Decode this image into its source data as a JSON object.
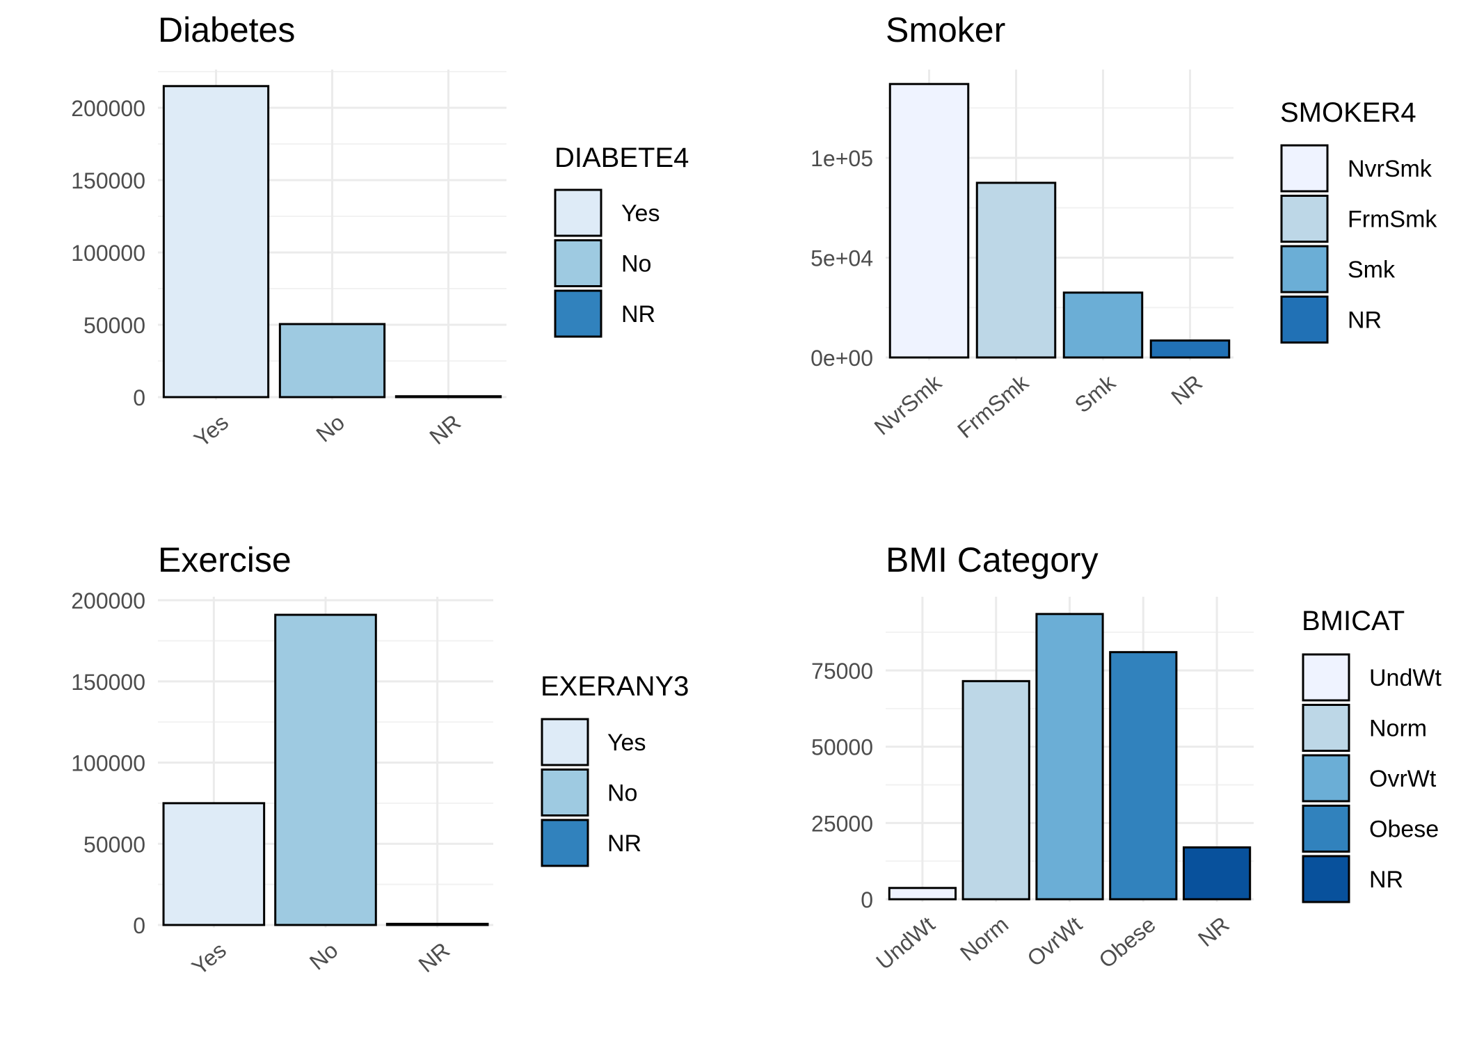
{
  "chart_data": [
    {
      "type": "bar",
      "title": "Diabetes",
      "categories": [
        "Yes",
        "No",
        "NR"
      ],
      "values": [
        215000,
        50500,
        600
      ],
      "ylim": [
        0,
        215000
      ],
      "yticks": [
        0,
        50000,
        100000,
        150000,
        200000
      ],
      "ytick_labels": [
        "0",
        "50000",
        "100000",
        "150000",
        "200000"
      ],
      "xlabel": "",
      "ylabel": "",
      "grid": true,
      "legend": {
        "title": "DIABETE4",
        "position": "right",
        "entries": [
          "Yes",
          "No",
          "NR"
        ],
        "colors": [
          "#deebf7",
          "#9ecae1",
          "#3182bd"
        ]
      }
    },
    {
      "type": "bar",
      "title": "Smoker",
      "categories": [
        "NvrSmk",
        "FrmSmk",
        "Smk",
        "NR"
      ],
      "values": [
        137000,
        87500,
        32500,
        8500
      ],
      "ylim": [
        0,
        137000
      ],
      "yticks": [
        0,
        50000,
        100000
      ],
      "ytick_labels": [
        "0e+00",
        "5e+04",
        "1e+05"
      ],
      "xlabel": "",
      "ylabel": "",
      "grid": true,
      "legend": {
        "title": "SMOKER4",
        "position": "right",
        "entries": [
          "NvrSmk",
          "FrmSmk",
          "Smk",
          "NR"
        ],
        "colors": [
          "#eff3ff",
          "#bdd7e7",
          "#6baed6",
          "#2171b5"
        ]
      }
    },
    {
      "type": "bar",
      "title": "Exercise",
      "categories": [
        "Yes",
        "No",
        "NR"
      ],
      "values": [
        75000,
        191000,
        700
      ],
      "ylim": [
        0,
        200000
      ],
      "yticks": [
        0,
        50000,
        100000,
        150000,
        200000
      ],
      "ytick_labels": [
        "0",
        "50000",
        "100000",
        "150000",
        "200000"
      ],
      "xlabel": "",
      "ylabel": "",
      "grid": true,
      "legend": {
        "title": "EXERANY3",
        "position": "right",
        "entries": [
          "Yes",
          "No",
          "NR"
        ],
        "colors": [
          "#deebf7",
          "#9ecae1",
          "#3182bd"
        ]
      }
    },
    {
      "type": "bar",
      "title": "BMI Category",
      "categories": [
        "UndWt",
        "Norm",
        "OvrWt",
        "Obese",
        "NR"
      ],
      "values": [
        3700,
        71500,
        93500,
        81000,
        17000
      ],
      "ylim": [
        0,
        93500
      ],
      "yticks": [
        0,
        25000,
        50000,
        75000
      ],
      "ytick_labels": [
        "0",
        "25000",
        "50000",
        "75000"
      ],
      "xlabel": "",
      "ylabel": "",
      "grid": true,
      "legend": {
        "title": "BMICAT",
        "position": "right",
        "entries": [
          "UndWt",
          "Norm",
          "OvrWt",
          "Obese",
          "NR"
        ],
        "colors": [
          "#eff3ff",
          "#bdd7e7",
          "#6baed6",
          "#3182bd",
          "#08519c"
        ]
      }
    }
  ]
}
